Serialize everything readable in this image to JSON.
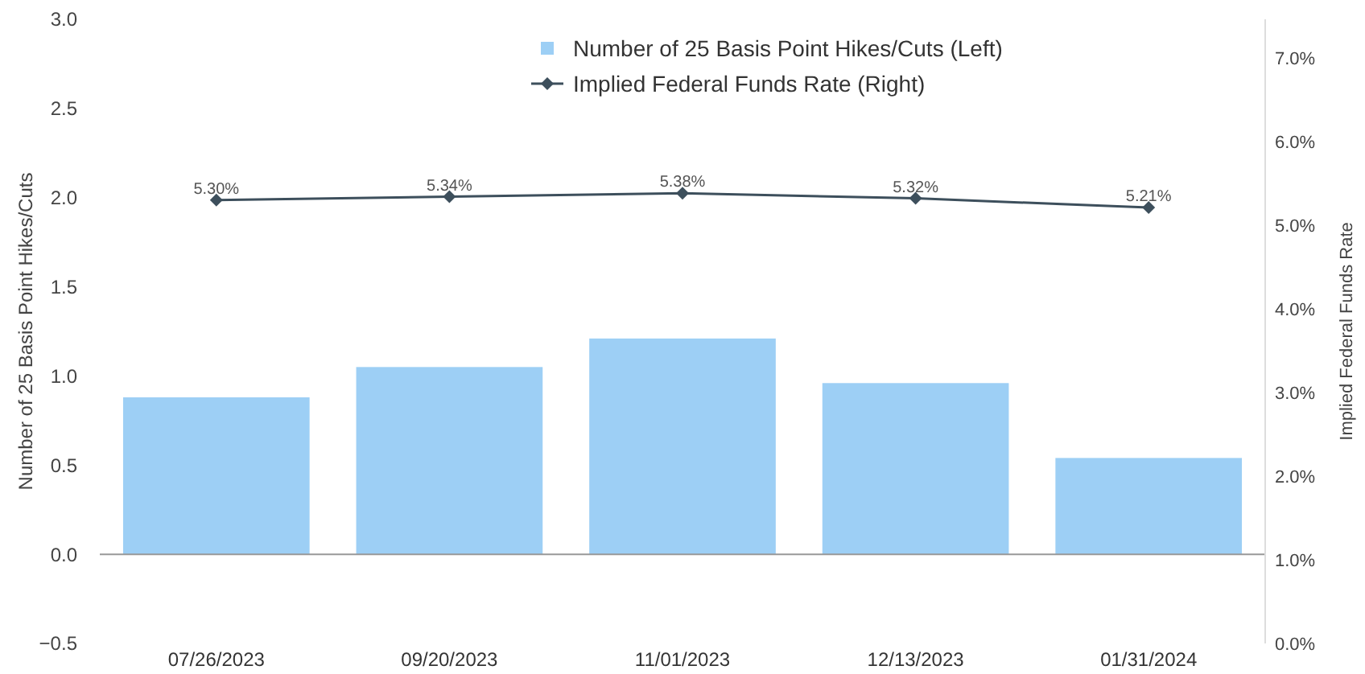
{
  "chart_data": {
    "type": "bar",
    "categories": [
      "07/26/2023",
      "09/20/2023",
      "11/01/2023",
      "12/13/2023",
      "01/31/2024"
    ],
    "series": [
      {
        "name": "Number of 25 Basis Point Hikes/Cuts (Left)",
        "color": "#9dcff5",
        "values": [
          0.88,
          1.05,
          1.21,
          0.96,
          0.54
        ]
      },
      {
        "name": "Implied Federal Funds Rate (Right)",
        "type": "line",
        "axis": "y2",
        "color": "#3d4f5c",
        "values": [
          5.3,
          5.34,
          5.38,
          5.32,
          5.21
        ],
        "value_labels": [
          "5.30%",
          "5.34%",
          "5.38%",
          "5.32%",
          "5.21%"
        ],
        "marker": "diamond"
      }
    ],
    "ylabel": "Number of 25 Basis Point Hikes/Cuts",
    "y2label": "Implied Federal Funds Rate",
    "ylim": [
      -0.5,
      3.0
    ],
    "yticks": [
      {
        "value": -0.5,
        "label": "−0.5"
      },
      {
        "value": 0,
        "label": "0.0"
      },
      0.5,
      {
        "value": 1,
        "label": "1.0"
      },
      1.5,
      {
        "value": 2,
        "label": "2.0"
      },
      2.5,
      {
        "value": 3,
        "label": "3.0"
      }
    ],
    "y2lim": [
      0,
      7.46
    ],
    "y2ticks": [
      {
        "value": 0,
        "label": "0.0%"
      },
      {
        "value": 1,
        "label": "1.0%"
      },
      {
        "value": 2,
        "label": "2.0%"
      },
      {
        "value": 3,
        "label": "3.0%"
      },
      {
        "value": 4,
        "label": "4.0%"
      },
      {
        "value": 5,
        "label": "5.0%"
      },
      {
        "value": 6,
        "label": "6.0%"
      },
      {
        "value": 7,
        "label": "7.0%"
      }
    ],
    "legend": "top"
  }
}
